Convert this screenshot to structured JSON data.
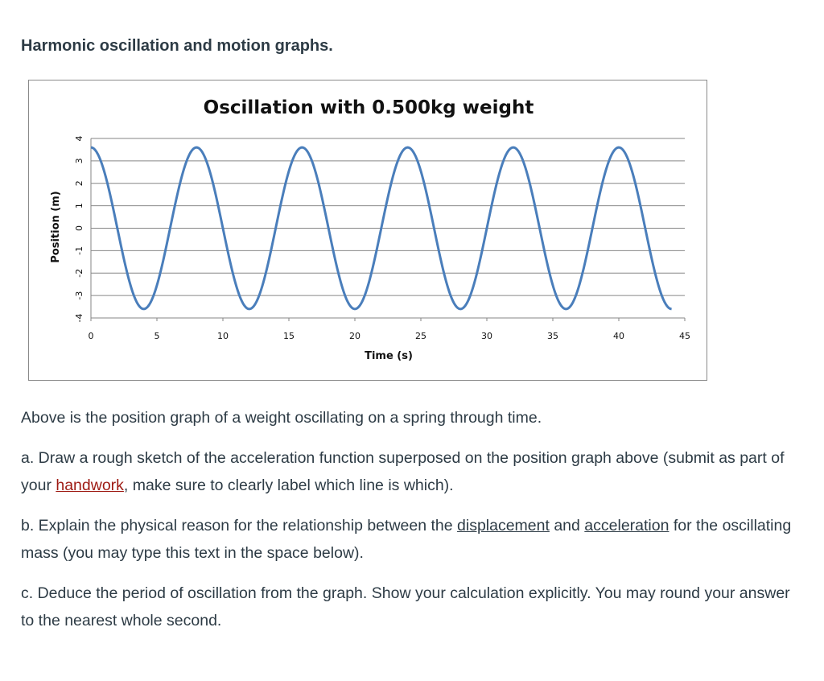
{
  "page": {
    "heading": "Harmonic oscillation and motion graphs."
  },
  "paragraphs": {
    "p1": "Above is the position graph of a weight oscillating on a spring through time.",
    "a_text1": "a. Draw a rough sketch of the acceleration function superposed on the position graph above (submit as part of your ",
    "a_link": "handwork",
    "a_text2": ", make sure to clearly label which line is which).",
    "b_text1": "b. Explain the physical reason for the relationship between the ",
    "b_link1": "displacement",
    "b_text2": " and ",
    "b_link2": "acceleration",
    "b_text3": " for the oscillating mass (you may type this text in the space below).",
    "c_text": "c. Deduce the period of oscillation from the graph. Show your calculation explicitly. You may round your answer to the nearest whole second."
  },
  "colors": {
    "text": "#2d3b45",
    "link_red": "#9e1b14",
    "curve": "#4a7ebb",
    "grid": "#868686"
  },
  "chart_data": {
    "type": "line",
    "title": "Oscillation with 0.500kg weight",
    "xlabel": "Time (s)",
    "ylabel": "Position (m)",
    "xlim": [
      0,
      45
    ],
    "ylim": [
      -4,
      4
    ],
    "xticks": [
      "0",
      "5",
      "10",
      "15",
      "20",
      "25",
      "30",
      "35",
      "40",
      "45"
    ],
    "yticks": [
      "4",
      "3",
      "2",
      "1",
      "0",
      "-1",
      "-2",
      "-3",
      "-4"
    ],
    "grid": "horizontal",
    "series": [
      {
        "color": "#4a7ebb",
        "amplitude": 3.6,
        "period": 8,
        "x": [
          0,
          2,
          4,
          6,
          8,
          10,
          12,
          14,
          16,
          18,
          20,
          22,
          24,
          26,
          28,
          30,
          32,
          34,
          36,
          38,
          40,
          42,
          44
        ],
        "y": [
          3.6,
          0,
          -3.6,
          0,
          3.6,
          0,
          -3.6,
          0,
          3.6,
          0,
          -3.6,
          0,
          3.6,
          0,
          -3.6,
          0,
          3.6,
          0,
          -3.6,
          0,
          3.6,
          0,
          -3.6
        ]
      }
    ]
  }
}
